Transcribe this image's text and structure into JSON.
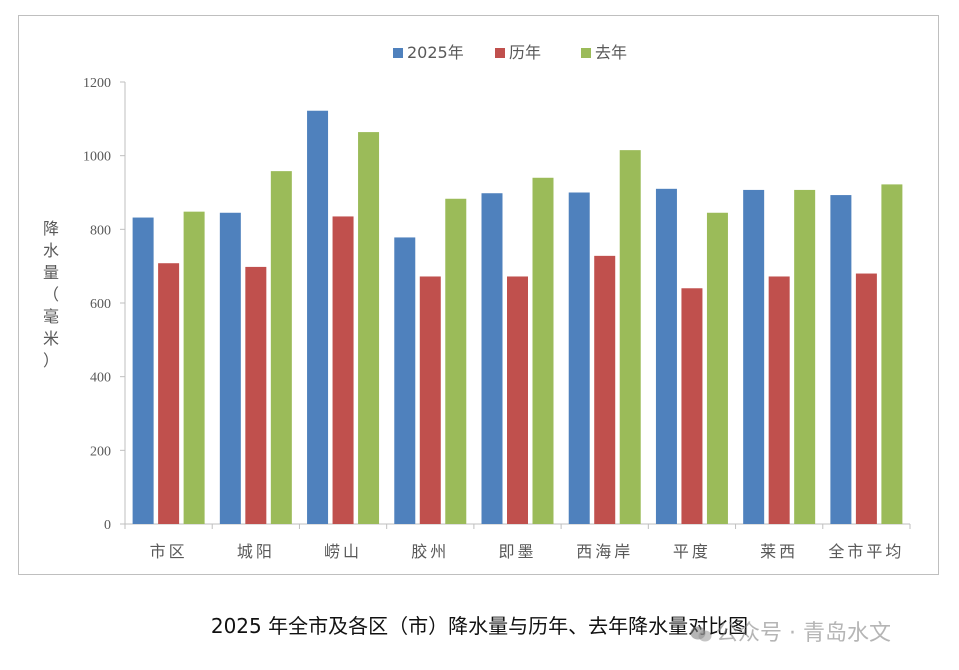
{
  "caption": "2025 年全市及各区（市）降水量与历年、去年降水量对比图",
  "watermark": "公众号 · 青岛水文",
  "chart_data": {
    "type": "bar",
    "ylabel": "降水量（毫米）",
    "ylim": [
      0,
      1200
    ],
    "yticks": [
      0,
      200,
      400,
      600,
      800,
      1000,
      1200
    ],
    "legend_position": "top",
    "categories": [
      "市区",
      "城阳",
      "崂山",
      "胶州",
      "即墨",
      "西海岸",
      "平度",
      "莱西",
      "全市平均"
    ],
    "series": [
      {
        "name": "2025年",
        "color": "#4f81bd",
        "values": [
          832,
          845,
          1122,
          778,
          898,
          900,
          910,
          907,
          893
        ]
      },
      {
        "name": "历年",
        "color": "#c0504d",
        "values": [
          708,
          698,
          835,
          672,
          672,
          728,
          640,
          672,
          680
        ]
      },
      {
        "name": "去年",
        "color": "#9bbb59",
        "values": [
          848,
          958,
          1064,
          883,
          940,
          1015,
          845,
          907,
          922
        ]
      }
    ],
    "grid": false
  }
}
